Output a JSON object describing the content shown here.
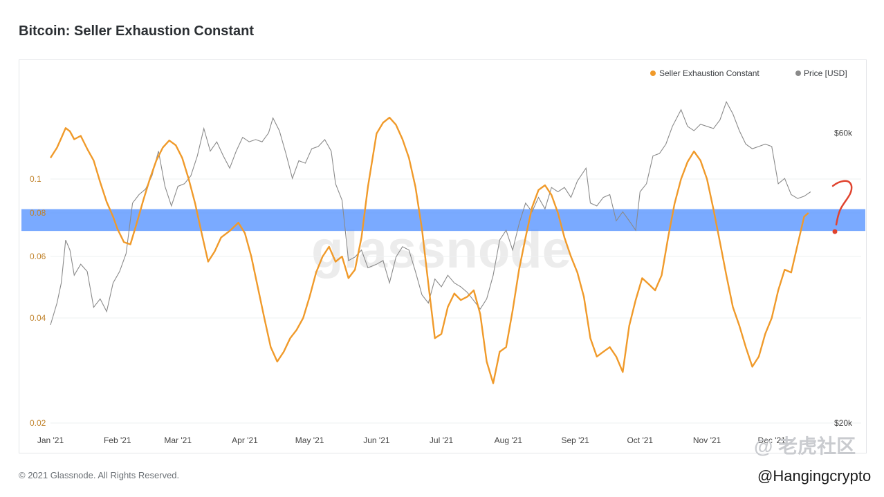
{
  "page": {
    "title": "Bitcoin: Seller Exhaustion Constant",
    "footer": "© 2021 Glassnode. All Rights Reserved."
  },
  "watermarks": {
    "center": "glassnode",
    "corner_top": "@ 老虎社区",
    "corner_bottom": "@Hangingcrypto"
  },
  "colors": {
    "sec": "#f09a2a",
    "price": "#8a8a8a",
    "band": "#5d97ff",
    "annot": "#e0432e"
  },
  "chart_data": {
    "type": "line",
    "title": "Bitcoin: Seller Exhaustion Constant",
    "legend": {
      "placement": "top-right",
      "items": [
        {
          "label": "Seller Exhaustion Constant",
          "color": "#f09a2a"
        },
        {
          "label": "Price [USD]",
          "color": "#8a8a8a"
        }
      ]
    },
    "x_range": [
      "2021-01-01",
      "2021-12-28"
    ],
    "x_ticks": [
      {
        "date": "2021-01-01",
        "label": "Jan '21"
      },
      {
        "date": "2021-02-01",
        "label": "Feb '21"
      },
      {
        "date": "2021-03-01",
        "label": "Mar '21"
      },
      {
        "date": "2021-04-01",
        "label": "Apr '21"
      },
      {
        "date": "2021-05-01",
        "label": "May '21"
      },
      {
        "date": "2021-06-01",
        "label": "Jun '21"
      },
      {
        "date": "2021-07-01",
        "label": "Jul '21"
      },
      {
        "date": "2021-08-01",
        "label": "Aug '21"
      },
      {
        "date": "2021-09-01",
        "label": "Sep '21"
      },
      {
        "date": "2021-10-01",
        "label": "Oct '21"
      },
      {
        "date": "2021-11-01",
        "label": "Nov '21"
      },
      {
        "date": "2021-12-01",
        "label": "Dec '21"
      }
    ],
    "y_left": {
      "scale": "log",
      "range": [
        0.02,
        0.2
      ],
      "ticks": [
        {
          "v": 0.1,
          "label": "0.1"
        },
        {
          "v": 0.08,
          "label": "0.08"
        },
        {
          "v": 0.06,
          "label": "0.06"
        },
        {
          "v": 0.04,
          "label": "0.04"
        },
        {
          "v": 0.02,
          "label": "0.02"
        }
      ]
    },
    "y_right": {
      "scale": "log",
      "range": [
        20000,
        75000
      ],
      "ticks": [
        {
          "v": 60000,
          "label": "$60k"
        },
        {
          "v": 20000,
          "label": "$20k"
        }
      ]
    },
    "grid": true,
    "highlight_band": {
      "axis": "y_left",
      "from": 0.071,
      "to": 0.082
    },
    "series": [
      {
        "name": "Seller Exhaustion Constant",
        "axis": "y_left",
        "color": "#f09a2a",
        "points": [
          [
            "2021-01-01",
            0.115
          ],
          [
            "2021-01-04",
            0.123
          ],
          [
            "2021-01-06",
            0.131
          ],
          [
            "2021-01-08",
            0.14
          ],
          [
            "2021-01-10",
            0.137
          ],
          [
            "2021-01-12",
            0.13
          ],
          [
            "2021-01-15",
            0.133
          ],
          [
            "2021-01-18",
            0.122
          ],
          [
            "2021-01-21",
            0.113
          ],
          [
            "2021-01-24",
            0.098
          ],
          [
            "2021-01-27",
            0.086
          ],
          [
            "2021-01-30",
            0.078
          ],
          [
            "2021-02-01",
            0.072
          ],
          [
            "2021-02-04",
            0.066
          ],
          [
            "2021-02-07",
            0.065
          ],
          [
            "2021-02-10",
            0.075
          ],
          [
            "2021-02-13",
            0.087
          ],
          [
            "2021-02-16",
            0.1
          ],
          [
            "2021-02-19",
            0.113
          ],
          [
            "2021-02-22",
            0.123
          ],
          [
            "2021-02-25",
            0.129
          ],
          [
            "2021-02-28",
            0.125
          ],
          [
            "2021-03-03",
            0.115
          ],
          [
            "2021-03-06",
            0.1
          ],
          [
            "2021-03-09",
            0.085
          ],
          [
            "2021-03-12",
            0.07
          ],
          [
            "2021-03-15",
            0.058
          ],
          [
            "2021-03-18",
            0.062
          ],
          [
            "2021-03-21",
            0.068
          ],
          [
            "2021-03-25",
            0.071
          ],
          [
            "2021-03-29",
            0.075
          ],
          [
            "2021-04-01",
            0.07
          ],
          [
            "2021-04-04",
            0.06
          ],
          [
            "2021-04-07",
            0.049
          ],
          [
            "2021-04-10",
            0.04
          ],
          [
            "2021-04-13",
            0.033
          ],
          [
            "2021-04-16",
            0.03
          ],
          [
            "2021-04-19",
            0.032
          ],
          [
            "2021-04-22",
            0.035
          ],
          [
            "2021-04-25",
            0.037
          ],
          [
            "2021-04-28",
            0.04
          ],
          [
            "2021-05-01",
            0.046
          ],
          [
            "2021-05-04",
            0.054
          ],
          [
            "2021-05-07",
            0.06
          ],
          [
            "2021-05-10",
            0.064
          ],
          [
            "2021-05-13",
            0.058
          ],
          [
            "2021-05-16",
            0.06
          ],
          [
            "2021-05-19",
            0.052
          ],
          [
            "2021-05-22",
            0.055
          ],
          [
            "2021-05-25",
            0.068
          ],
          [
            "2021-05-28",
            0.095
          ],
          [
            "2021-06-01",
            0.135
          ],
          [
            "2021-06-04",
            0.145
          ],
          [
            "2021-06-07",
            0.15
          ],
          [
            "2021-06-10",
            0.143
          ],
          [
            "2021-06-13",
            0.13
          ],
          [
            "2021-06-16",
            0.115
          ],
          [
            "2021-06-19",
            0.095
          ],
          [
            "2021-06-22",
            0.072
          ],
          [
            "2021-06-25",
            0.05
          ],
          [
            "2021-06-28",
            0.035
          ],
          [
            "2021-07-01",
            0.036
          ],
          [
            "2021-07-04",
            0.043
          ],
          [
            "2021-07-07",
            0.047
          ],
          [
            "2021-07-10",
            0.045
          ],
          [
            "2021-07-13",
            0.046
          ],
          [
            "2021-07-16",
            0.048
          ],
          [
            "2021-07-19",
            0.041
          ],
          [
            "2021-07-22",
            0.03
          ],
          [
            "2021-07-25",
            0.026
          ],
          [
            "2021-07-28",
            0.032
          ],
          [
            "2021-07-31",
            0.033
          ],
          [
            "2021-08-03",
            0.042
          ],
          [
            "2021-08-06",
            0.055
          ],
          [
            "2021-08-09",
            0.068
          ],
          [
            "2021-08-12",
            0.083
          ],
          [
            "2021-08-15",
            0.093
          ],
          [
            "2021-08-18",
            0.096
          ],
          [
            "2021-08-21",
            0.09
          ],
          [
            "2021-08-24",
            0.08
          ],
          [
            "2021-08-27",
            0.068
          ],
          [
            "2021-08-30",
            0.06
          ],
          [
            "2021-09-02",
            0.054
          ],
          [
            "2021-09-05",
            0.046
          ],
          [
            "2021-09-08",
            0.035
          ],
          [
            "2021-09-11",
            0.031
          ],
          [
            "2021-09-14",
            0.032
          ],
          [
            "2021-09-17",
            0.033
          ],
          [
            "2021-09-20",
            0.031
          ],
          [
            "2021-09-23",
            0.028
          ],
          [
            "2021-09-26",
            0.038
          ],
          [
            "2021-09-29",
            0.045
          ],
          [
            "2021-10-02",
            0.052
          ],
          [
            "2021-10-05",
            0.05
          ],
          [
            "2021-10-08",
            0.048
          ],
          [
            "2021-10-11",
            0.053
          ],
          [
            "2021-10-14",
            0.068
          ],
          [
            "2021-10-17",
            0.085
          ],
          [
            "2021-10-20",
            0.1
          ],
          [
            "2021-10-23",
            0.112
          ],
          [
            "2021-10-26",
            0.12
          ],
          [
            "2021-10-29",
            0.113
          ],
          [
            "2021-11-01",
            0.1
          ],
          [
            "2021-11-04",
            0.082
          ],
          [
            "2021-11-07",
            0.066
          ],
          [
            "2021-11-10",
            0.053
          ],
          [
            "2021-11-13",
            0.043
          ],
          [
            "2021-11-16",
            0.038
          ],
          [
            "2021-11-19",
            0.033
          ],
          [
            "2021-11-22",
            0.029
          ],
          [
            "2021-11-25",
            0.031
          ],
          [
            "2021-11-28",
            0.036
          ],
          [
            "2021-12-01",
            0.04
          ],
          [
            "2021-12-04",
            0.048
          ],
          [
            "2021-12-07",
            0.055
          ],
          [
            "2021-12-10",
            0.054
          ],
          [
            "2021-12-13",
            0.065
          ],
          [
            "2021-12-16",
            0.078
          ],
          [
            "2021-12-18",
            0.08
          ]
        ]
      },
      {
        "name": "Price [USD]",
        "axis": "y_right",
        "color": "#8a8a8a",
        "points": [
          [
            "2021-01-01",
            29000
          ],
          [
            "2021-01-04",
            31500
          ],
          [
            "2021-01-06",
            34000
          ],
          [
            "2021-01-08",
            40000
          ],
          [
            "2021-01-10",
            38500
          ],
          [
            "2021-01-12",
            35000
          ],
          [
            "2021-01-15",
            36500
          ],
          [
            "2021-01-18",
            35500
          ],
          [
            "2021-01-21",
            31000
          ],
          [
            "2021-01-24",
            32000
          ],
          [
            "2021-01-27",
            30500
          ],
          [
            "2021-01-30",
            34000
          ],
          [
            "2021-02-02",
            35500
          ],
          [
            "2021-02-05",
            38000
          ],
          [
            "2021-02-08",
            46000
          ],
          [
            "2021-02-11",
            47500
          ],
          [
            "2021-02-14",
            48500
          ],
          [
            "2021-02-17",
            51000
          ],
          [
            "2021-02-20",
            56000
          ],
          [
            "2021-02-23",
            49000
          ],
          [
            "2021-02-26",
            45500
          ],
          [
            "2021-03-01",
            49000
          ],
          [
            "2021-03-04",
            49500
          ],
          [
            "2021-03-07",
            51000
          ],
          [
            "2021-03-10",
            55000
          ],
          [
            "2021-03-13",
            61000
          ],
          [
            "2021-03-16",
            56000
          ],
          [
            "2021-03-19",
            58000
          ],
          [
            "2021-03-22",
            55000
          ],
          [
            "2021-03-25",
            52500
          ],
          [
            "2021-03-28",
            56000
          ],
          [
            "2021-03-31",
            59000
          ],
          [
            "2021-04-03",
            58000
          ],
          [
            "2021-04-06",
            58500
          ],
          [
            "2021-04-09",
            58000
          ],
          [
            "2021-04-12",
            60000
          ],
          [
            "2021-04-14",
            63500
          ],
          [
            "2021-04-17",
            60500
          ],
          [
            "2021-04-20",
            55500
          ],
          [
            "2021-04-23",
            50500
          ],
          [
            "2021-04-26",
            54000
          ],
          [
            "2021-04-29",
            53500
          ],
          [
            "2021-05-02",
            56500
          ],
          [
            "2021-05-05",
            57000
          ],
          [
            "2021-05-08",
            58500
          ],
          [
            "2021-05-11",
            56000
          ],
          [
            "2021-05-13",
            49500
          ],
          [
            "2021-05-16",
            46500
          ],
          [
            "2021-05-19",
            37000
          ],
          [
            "2021-05-22",
            37500
          ],
          [
            "2021-05-25",
            38500
          ],
          [
            "2021-05-28",
            36000
          ],
          [
            "2021-06-01",
            36500
          ],
          [
            "2021-06-04",
            37000
          ],
          [
            "2021-06-07",
            34000
          ],
          [
            "2021-06-10",
            37500
          ],
          [
            "2021-06-13",
            39000
          ],
          [
            "2021-06-16",
            38500
          ],
          [
            "2021-06-19",
            35500
          ],
          [
            "2021-06-22",
            32500
          ],
          [
            "2021-06-25",
            31500
          ],
          [
            "2021-06-28",
            34500
          ],
          [
            "2021-07-01",
            33500
          ],
          [
            "2021-07-04",
            35000
          ],
          [
            "2021-07-07",
            34000
          ],
          [
            "2021-07-10",
            33500
          ],
          [
            "2021-07-13",
            32800
          ],
          [
            "2021-07-16",
            31800
          ],
          [
            "2021-07-19",
            30800
          ],
          [
            "2021-07-22",
            32000
          ],
          [
            "2021-07-25",
            35000
          ],
          [
            "2021-07-28",
            40000
          ],
          [
            "2021-07-31",
            41500
          ],
          [
            "2021-08-03",
            38500
          ],
          [
            "2021-08-06",
            42500
          ],
          [
            "2021-08-09",
            46000
          ],
          [
            "2021-08-12",
            44500
          ],
          [
            "2021-08-15",
            47000
          ],
          [
            "2021-08-18",
            45000
          ],
          [
            "2021-08-21",
            48800
          ],
          [
            "2021-08-24",
            48000
          ],
          [
            "2021-08-27",
            48800
          ],
          [
            "2021-08-30",
            47000
          ],
          [
            "2021-09-02",
            50000
          ],
          [
            "2021-09-06",
            52500
          ],
          [
            "2021-09-08",
            46000
          ],
          [
            "2021-09-11",
            45500
          ],
          [
            "2021-09-14",
            47000
          ],
          [
            "2021-09-17",
            47500
          ],
          [
            "2021-09-20",
            43000
          ],
          [
            "2021-09-23",
            44500
          ],
          [
            "2021-09-26",
            43000
          ],
          [
            "2021-09-29",
            41500
          ],
          [
            "2021-10-01",
            48000
          ],
          [
            "2021-10-04",
            49500
          ],
          [
            "2021-10-07",
            55000
          ],
          [
            "2021-10-10",
            55500
          ],
          [
            "2021-10-13",
            57500
          ],
          [
            "2021-10-16",
            61500
          ],
          [
            "2021-10-20",
            65500
          ],
          [
            "2021-10-23",
            61500
          ],
          [
            "2021-10-26",
            60500
          ],
          [
            "2021-10-29",
            62000
          ],
          [
            "2021-11-01",
            61500
          ],
          [
            "2021-11-04",
            61000
          ],
          [
            "2021-11-07",
            63000
          ],
          [
            "2021-11-10",
            67500
          ],
          [
            "2021-11-13",
            64500
          ],
          [
            "2021-11-16",
            60500
          ],
          [
            "2021-11-19",
            57500
          ],
          [
            "2021-11-22",
            56500
          ],
          [
            "2021-11-25",
            57000
          ],
          [
            "2021-11-28",
            57500
          ],
          [
            "2021-12-01",
            57000
          ],
          [
            "2021-12-04",
            49500
          ],
          [
            "2021-12-07",
            50500
          ],
          [
            "2021-12-10",
            47500
          ],
          [
            "2021-12-13",
            46800
          ],
          [
            "2021-12-16",
            47200
          ],
          [
            "2021-12-19",
            48000
          ]
        ]
      }
    ]
  }
}
